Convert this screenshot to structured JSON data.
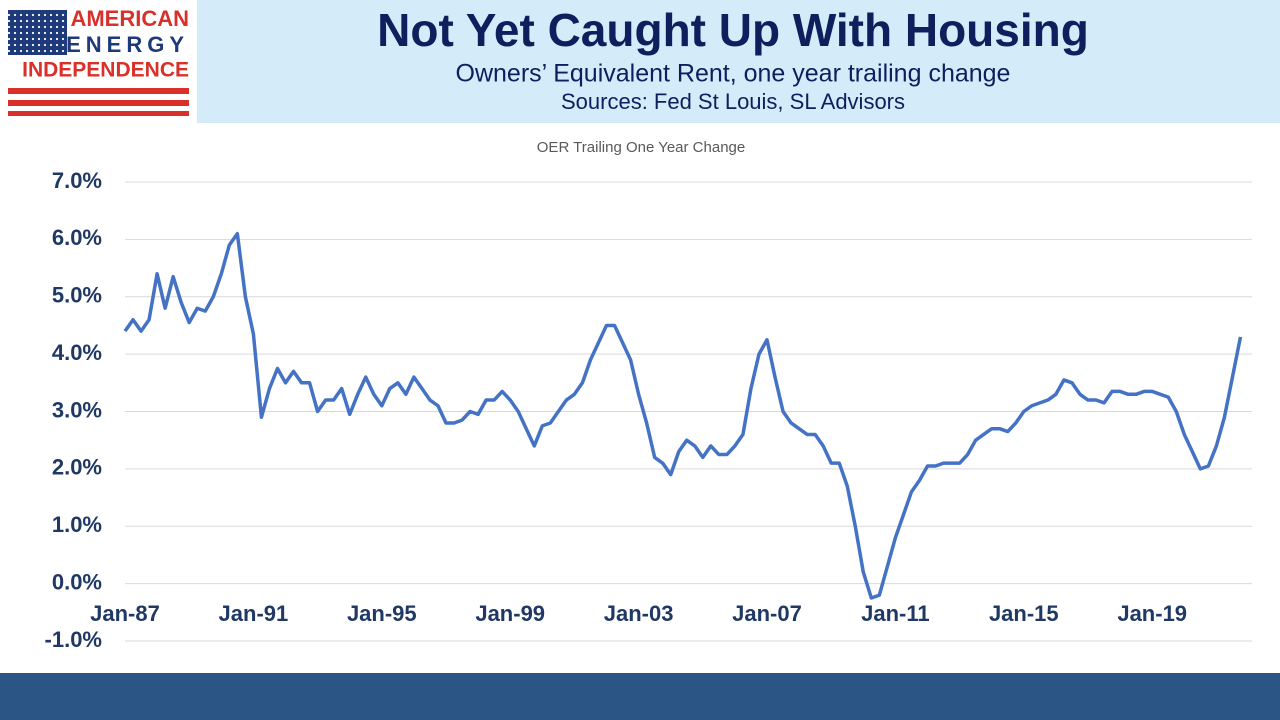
{
  "logo": {
    "lines": [
      "AMERICAN",
      "ENERGY",
      "INDEPENDENCE"
    ]
  },
  "header": {
    "title": "Not Yet Caught Up With Housing",
    "subtitle": "Owners’ Equivalent Rent, one year trailing change",
    "sources": "Sources: Fed St Louis, SL Advisors"
  },
  "chart_data": {
    "type": "line",
    "title": "OER Trailing One Year Change",
    "categories": [
      "Jan-87",
      null,
      null,
      null,
      null,
      null,
      null,
      null,
      null,
      null,
      null,
      null,
      null,
      null,
      null,
      null,
      "Jan-91",
      null,
      null,
      null,
      null,
      null,
      null,
      null,
      null,
      null,
      null,
      null,
      null,
      null,
      null,
      null,
      "Jan-95",
      null,
      null,
      null,
      null,
      null,
      null,
      null,
      null,
      null,
      null,
      null,
      null,
      null,
      null,
      null,
      "Jan-99",
      null,
      null,
      null,
      null,
      null,
      null,
      null,
      null,
      null,
      null,
      null,
      null,
      null,
      null,
      null,
      "Jan-03",
      null,
      null,
      null,
      null,
      null,
      null,
      null,
      null,
      null,
      null,
      null,
      null,
      null,
      null,
      null,
      "Jan-07",
      null,
      null,
      null,
      null,
      null,
      null,
      null,
      null,
      null,
      null,
      null,
      null,
      null,
      null,
      null,
      "Jan-11",
      null,
      null,
      null,
      null,
      null,
      null,
      null,
      null,
      null,
      null,
      null,
      null,
      null,
      null,
      null,
      "Jan-15",
      null,
      null,
      null,
      null,
      null,
      null,
      null,
      null,
      null,
      null,
      null,
      null,
      null,
      null,
      null,
      "Jan-19",
      null,
      null,
      null,
      null,
      null,
      null,
      null,
      null,
      null,
      null,
      null
    ],
    "series": [
      {
        "name": "OER",
        "color": "#4472c4",
        "values": [
          4.4,
          4.6,
          4.4,
          4.6,
          5.4,
          4.8,
          5.35,
          4.9,
          4.55,
          4.8,
          4.75,
          5.0,
          5.4,
          5.9,
          6.1,
          5.0,
          4.35,
          2.9,
          3.4,
          3.75,
          3.5,
          3.7,
          3.5,
          3.5,
          3.0,
          3.2,
          3.2,
          3.4,
          2.95,
          3.3,
          3.6,
          3.3,
          3.1,
          3.4,
          3.5,
          3.3,
          3.6,
          3.4,
          3.2,
          3.1,
          2.8,
          2.8,
          2.85,
          3.0,
          2.95,
          3.2,
          3.2,
          3.35,
          3.2,
          3.0,
          2.7,
          2.4,
          2.75,
          2.8,
          3.0,
          3.2,
          3.3,
          3.5,
          3.9,
          4.2,
          4.5,
          4.5,
          4.2,
          3.9,
          3.3,
          2.8,
          2.2,
          2.1,
          1.9,
          2.3,
          2.5,
          2.4,
          2.2,
          2.4,
          2.25,
          2.25,
          2.4,
          2.6,
          3.4,
          4.0,
          4.25,
          3.6,
          3.0,
          2.8,
          2.7,
          2.6,
          2.6,
          2.4,
          2.1,
          2.1,
          1.7,
          1.0,
          0.2,
          -0.25,
          -0.2,
          0.3,
          0.8,
          1.2,
          1.6,
          1.8,
          2.05,
          2.05,
          2.1,
          2.1,
          2.1,
          2.25,
          2.5,
          2.6,
          2.7,
          2.7,
          2.65,
          2.8,
          3.0,
          3.1,
          3.15,
          3.2,
          3.3,
          3.55,
          3.5,
          3.3,
          3.2,
          3.2,
          3.15,
          3.35,
          3.35,
          3.3,
          3.3,
          3.35,
          3.35,
          3.3,
          3.25,
          3.0,
          2.6,
          2.3,
          2.0,
          2.05,
          2.4,
          2.9,
          3.6,
          4.3
        ]
      }
    ],
    "ylim": [
      -1,
      7
    ],
    "yticks": [
      {
        "value": -1,
        "label": "-1.0%"
      },
      {
        "value": 0,
        "label": "0.0%"
      },
      {
        "value": 1,
        "label": "1.0%"
      },
      {
        "value": 2,
        "label": "2.0%"
      },
      {
        "value": 3,
        "label": "3.0%"
      },
      {
        "value": 4,
        "label": "4.0%"
      },
      {
        "value": 5,
        "label": "5.0%"
      },
      {
        "value": 6,
        "label": "6.0%"
      },
      {
        "value": 7,
        "label": "7.0%"
      }
    ],
    "grid": true
  }
}
